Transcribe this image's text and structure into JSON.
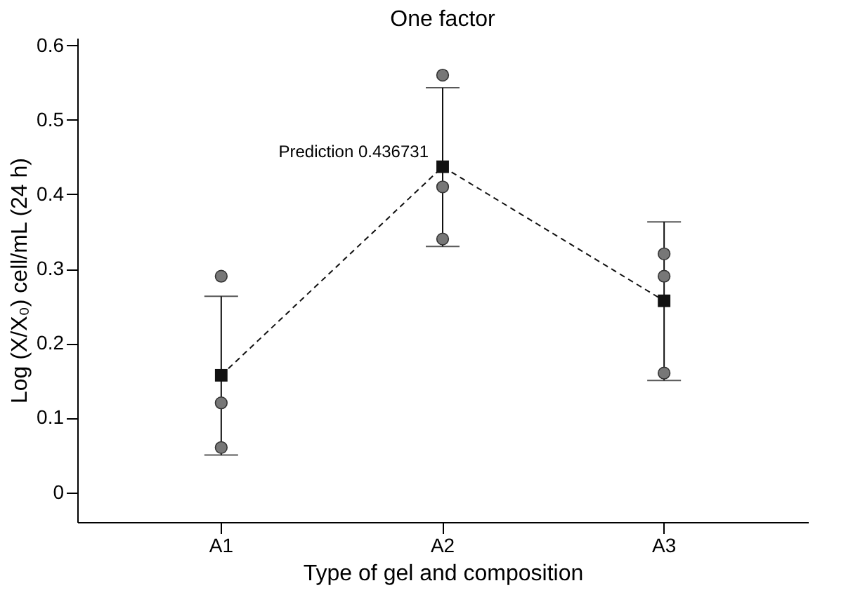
{
  "chart_data": {
    "type": "line",
    "title": "One factor",
    "xlabel": "Type of gel and composition",
    "ylabel": "Log (X/X₀) cell/mL (24 h)",
    "categories": [
      "A1",
      "A2",
      "A3"
    ],
    "series": [
      {
        "type": "line",
        "color": "#111111",
        "values": [
          0.157,
          0.437,
          0.257
        ],
        "errors": [
          [
            0.05,
            0.263
          ],
          [
            0.33,
            0.543
          ],
          [
            0.15,
            0.363
          ]
        ],
        "marker": "square",
        "line_style": "dashed"
      },
      {
        "type": "scatter",
        "color": "#777777",
        "x": [
          "A1",
          "A1",
          "A1",
          "A2",
          "A2",
          "A2",
          "A3",
          "A3",
          "A3"
        ],
        "values": [
          0.29,
          0.12,
          0.06,
          0.56,
          0.41,
          0.34,
          0.32,
          0.29,
          0.16
        ],
        "marker": "circle"
      }
    ],
    "annotations": [
      {
        "text": "Prediction 0.436731",
        "x": "A2",
        "y": 0.436731
      }
    ],
    "ylim": [
      -0.04,
      0.61
    ],
    "yticks": [
      0,
      0.1,
      0.2,
      0.3,
      0.4,
      0.5,
      0.6
    ],
    "grid": false
  }
}
